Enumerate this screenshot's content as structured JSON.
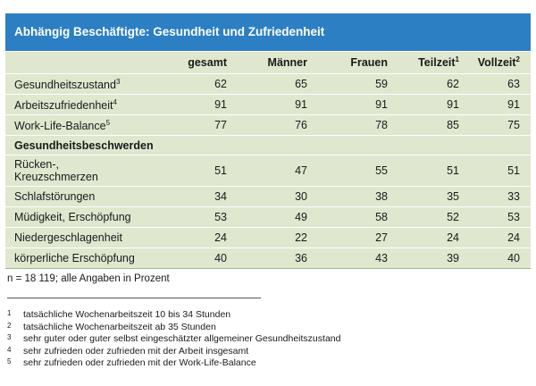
{
  "title": "Abhängig Beschäftigte: Gesundheit und Zufriedenheit",
  "columns": {
    "gesamt": "gesamt",
    "maenner": "Männer",
    "frauen": "Frauen",
    "teilzeit": "Teilzeit",
    "teilzeit_sup": "1",
    "vollzeit": "Vollzeit",
    "vollzeit_sup": "2"
  },
  "rows": [
    {
      "label": "Gesundheitszustand",
      "sup": "3",
      "values": [
        "62",
        "65",
        "59",
        "62",
        "63"
      ]
    },
    {
      "label": "Arbeitszufriedenheit",
      "sup": "4",
      "values": [
        "91",
        "91",
        "91",
        "91",
        "91"
      ]
    },
    {
      "label": "Work-Life-Balance",
      "sup": "5",
      "values": [
        "77",
        "76",
        "78",
        "85",
        "75"
      ]
    }
  ],
  "section_title": "Gesundheitsbeschwerden",
  "complaints": [
    {
      "label_line1": "Rücken-,",
      "label_line2": "Kreuzschmerzen",
      "values": [
        "51",
        "47",
        "55",
        "51",
        "51"
      ]
    },
    {
      "label": "Schlafstörungen",
      "values": [
        "34",
        "30",
        "38",
        "35",
        "33"
      ]
    },
    {
      "label": "Müdigkeit, Erschöpfung",
      "values": [
        "53",
        "49",
        "58",
        "52",
        "53"
      ]
    },
    {
      "label": "Niedergeschlagenheit",
      "values": [
        "24",
        "22",
        "27",
        "24",
        "24"
      ]
    },
    {
      "label": "körperliche Erschöpfung",
      "values": [
        "40",
        "36",
        "43",
        "39",
        "40"
      ]
    }
  ],
  "note": "n = 18 119; alle Angaben in Prozent",
  "footnotes": [
    {
      "n": "1",
      "text": "tatsächliche Wochenarbeitszeit 10 bis 34 Stunden"
    },
    {
      "n": "2",
      "text": "tatsächliche Wochenarbeitszeit ab 35 Stunden"
    },
    {
      "n": "3",
      "text": "sehr guter oder guter selbst eingeschätzter allgemeiner Gesundheitszustand"
    },
    {
      "n": "4",
      "text": "sehr zufrieden oder zufrieden mit der Arbeit insgesamt"
    },
    {
      "n": "5",
      "text": "sehr zufrieden oder zufrieden mit der Work-Life-Balance"
    }
  ]
}
